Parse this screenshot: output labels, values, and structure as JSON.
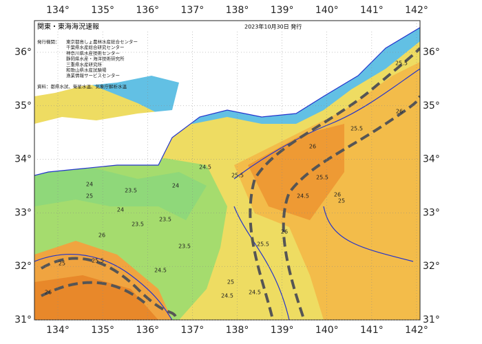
{
  "header": {
    "title": "関東・東海海況速報",
    "date": "2023年10月30日 発行"
  },
  "issuers": {
    "label": "発行機関：",
    "names": [
      "東京都島しょ農林水産総合センター",
      "千葉県水産総合研究センター",
      "神奈川県水産技術センター",
      "静岡県水産・海洋技術研究所",
      "三重県水産研究所",
      "和歌山県水産試験場",
      "漁業情報サービスセンター"
    ]
  },
  "source": "資料：都県水試、衛星水温、気象庁解析水温",
  "axes": {
    "longitudes": [
      "134°",
      "135°",
      "136°",
      "137°",
      "138°",
      "139°",
      "140°",
      "141°",
      "142°"
    ],
    "latitudes": [
      "36°",
      "35°",
      "34°",
      "33°",
      "32°",
      "31°"
    ]
  },
  "contour_labels": [
    "23.5",
    "23.5",
    "23.5",
    "23.5",
    "24",
    "24",
    "24",
    "24.5",
    "24.5",
    "24.5",
    "24.5",
    "25",
    "25",
    "25",
    "25.5",
    "25.5",
    "25.5",
    "25.5",
    "25.5",
    "26",
    "26",
    "26",
    "26",
    "26",
    "25",
    "24.5",
    "26",
    "25.5"
  ]
}
